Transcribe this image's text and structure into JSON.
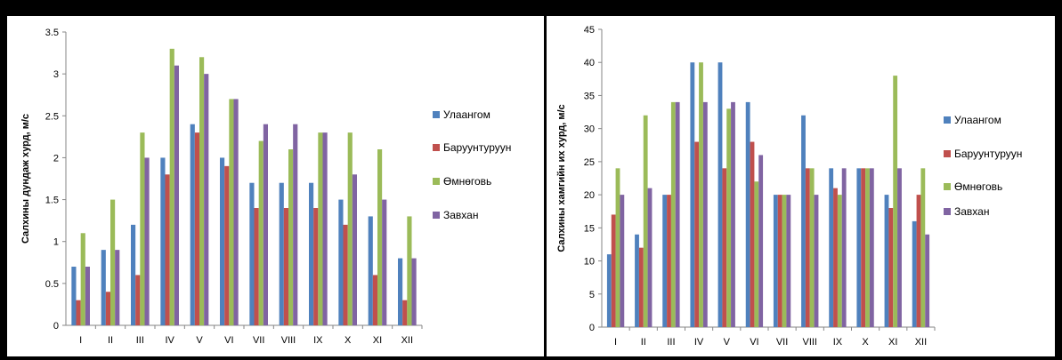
{
  "chart_data": [
    {
      "type": "bar",
      "title": "",
      "xlabel": "",
      "ylabel": "Салхины дундаж хурд, м/с",
      "ylim": [
        0,
        3.5
      ],
      "yticks": [
        0,
        0.5,
        1,
        1.5,
        2,
        2.5,
        3,
        3.5
      ],
      "ytick_labels": [
        "0",
        "0.5",
        "1",
        "1.5",
        "2",
        "2.5",
        "3",
        "3.5"
      ],
      "grid": false,
      "legend_position": "right",
      "categories": [
        "I",
        "II",
        "III",
        "IV",
        "V",
        "VI",
        "VII",
        "VIII",
        "IX",
        "X",
        "XI",
        "XII"
      ],
      "series": [
        {
          "name": "Улаангом",
          "color": "#4F81BD",
          "values": [
            0.7,
            0.9,
            1.2,
            2.0,
            2.4,
            2.0,
            1.7,
            1.7,
            1.7,
            1.5,
            1.3,
            0.8
          ]
        },
        {
          "name": "Баруунтуруун",
          "color": "#C0504D",
          "values": [
            0.3,
            0.4,
            0.6,
            1.8,
            2.3,
            1.9,
            1.4,
            1.4,
            1.4,
            1.2,
            0.6,
            0.3
          ]
        },
        {
          "name": "Өмнөговь",
          "color": "#9BBB59",
          "values": [
            1.1,
            1.5,
            2.3,
            3.3,
            3.2,
            2.7,
            2.2,
            2.1,
            2.3,
            2.3,
            2.1,
            1.3
          ]
        },
        {
          "name": "Завхан",
          "color": "#8064A2",
          "values": [
            0.7,
            0.9,
            2.0,
            3.1,
            3.0,
            2.7,
            2.4,
            2.4,
            2.3,
            1.8,
            1.5,
            0.8
          ]
        }
      ]
    },
    {
      "type": "bar",
      "title": "",
      "xlabel": "",
      "ylabel": "Салхины хамгийн их хурд, м/с",
      "ylim": [
        0,
        45
      ],
      "yticks": [
        0,
        5,
        10,
        15,
        20,
        25,
        30,
        35,
        40,
        45
      ],
      "ytick_labels": [
        "0",
        "5",
        "10",
        "15",
        "20",
        "25",
        "30",
        "35",
        "40",
        "45"
      ],
      "grid": false,
      "legend_position": "right",
      "categories": [
        "I",
        "II",
        "III",
        "IV",
        "V",
        "VI",
        "VII",
        "VIII",
        "IX",
        "X",
        "XI",
        "XII"
      ],
      "series": [
        {
          "name": "Улаангом",
          "color": "#4F81BD",
          "values": [
            11,
            14,
            20,
            40,
            40,
            34,
            20,
            32,
            24,
            24,
            20,
            16
          ]
        },
        {
          "name": "Баруунтуруун",
          "color": "#C0504D",
          "values": [
            17,
            12,
            20,
            28,
            24,
            28,
            20,
            24,
            21,
            24,
            18,
            20
          ]
        },
        {
          "name": "Өмнөговь",
          "color": "#9BBB59",
          "values": [
            24,
            32,
            34,
            40,
            33,
            22,
            20,
            24,
            20,
            24,
            38,
            24
          ]
        },
        {
          "name": "Завхан",
          "color": "#8064A2",
          "values": [
            20,
            21,
            34,
            34,
            34,
            26,
            20,
            20,
            24,
            24,
            24,
            14
          ]
        }
      ]
    }
  ]
}
